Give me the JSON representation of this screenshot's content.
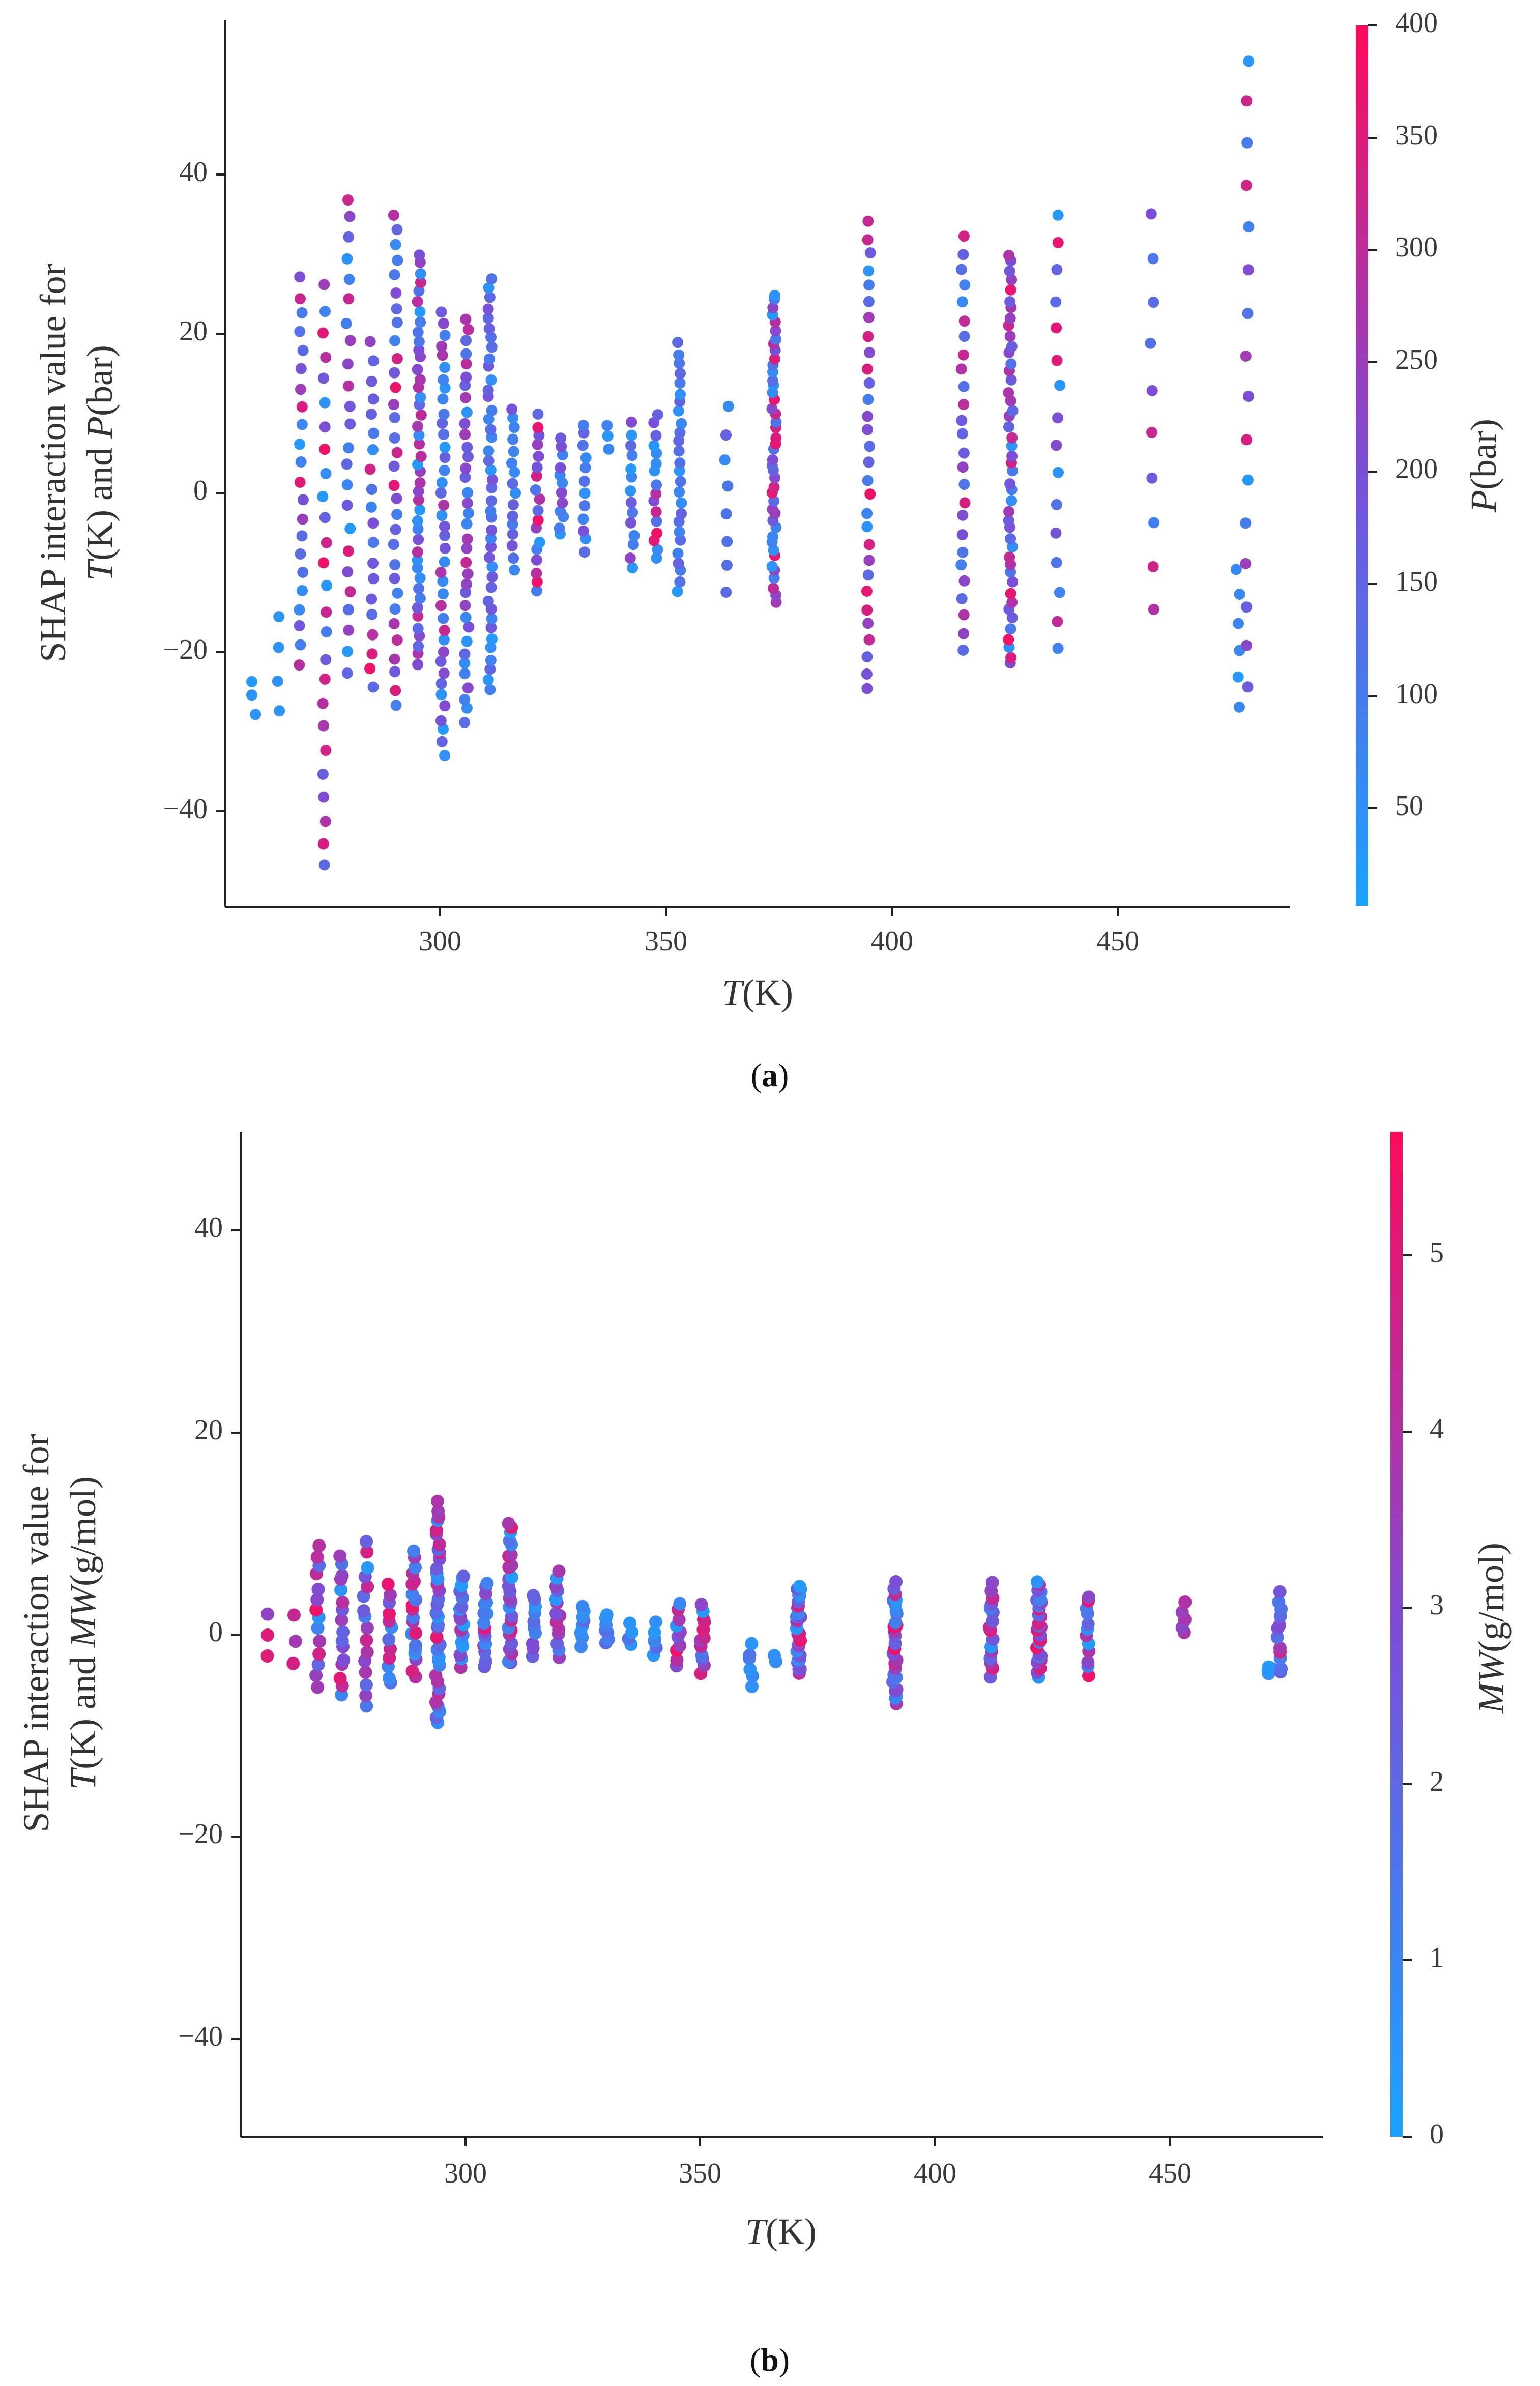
{
  "colors": {
    "low": "#1aa3ff",
    "mid": "#7b4fd6",
    "high": "#ff0a5a",
    "axis": "#222222"
  },
  "chart_data": [
    {
      "type": "scatter",
      "panel_label": "a",
      "ylabel_line1": "SHAP interaction value for",
      "ylabel_line2": {
        "v1": "T",
        "u1": "(K) and ",
        "v2": "P",
        "u2": "(bar)"
      },
      "xlabel": {
        "var": "T",
        "unit": "(K)"
      },
      "xlim": [
        257,
        482
      ],
      "ylim": [
        -52,
        58
      ],
      "xticks": [
        "300",
        "350",
        "400",
        "450"
      ],
      "yticks": [
        "40",
        "20",
        "0",
        "−20",
        "−40"
      ],
      "colorbar": {
        "label": {
          "var": "P",
          "unit": "(bar)"
        },
        "range": [
          8,
          400
        ],
        "ticks": [
          "50",
          "100",
          "150",
          "200",
          "250",
          "300",
          "350",
          "400"
        ]
      },
      "clusters": [
        {
          "x": 263,
          "ymin": -28,
          "ymax": -24,
          "cmin": 0.05,
          "cmax": 0.1,
          "n": 3
        },
        {
          "x": 268,
          "ymin": -28,
          "ymax": -16,
          "cmin": 0.05,
          "cmax": 0.15,
          "n": 4
        },
        {
          "x": 273,
          "ymin": -22,
          "ymax": 26,
          "cmin": 0.05,
          "cmax": 0.95,
          "n": 22
        },
        {
          "x": 278,
          "ymin": -47,
          "ymax": 25,
          "cmin": 0.05,
          "cmax": 0.95,
          "n": 26
        },
        {
          "x": 283,
          "ymin": -23,
          "ymax": 36,
          "cmin": 0.05,
          "cmax": 0.95,
          "n": 24
        },
        {
          "x": 288,
          "ymin": -25,
          "ymax": 18,
          "cmin": 0.1,
          "cmax": 0.95,
          "n": 20
        },
        {
          "x": 293,
          "ymin": -27,
          "ymax": 34,
          "cmin": 0.05,
          "cmax": 0.95,
          "n": 32
        },
        {
          "x": 298,
          "ymin": -22,
          "ymax": 29,
          "cmin": 0.05,
          "cmax": 0.8,
          "n": 44
        },
        {
          "x": 303,
          "ymin": -33,
          "ymax": 22,
          "cmin": 0.05,
          "cmax": 0.8,
          "n": 40
        },
        {
          "x": 308,
          "ymin": -29,
          "ymax": 21,
          "cmin": 0.05,
          "cmax": 0.8,
          "n": 36
        },
        {
          "x": 313,
          "ymin": -25,
          "ymax": 26,
          "cmin": 0.05,
          "cmax": 0.5,
          "n": 42
        },
        {
          "x": 318,
          "ymin": -10,
          "ymax": 10,
          "cmin": 0.05,
          "cmax": 0.5,
          "n": 16
        },
        {
          "x": 323,
          "ymin": -13,
          "ymax": 9,
          "cmin": 0.05,
          "cmax": 0.95,
          "n": 18
        },
        {
          "x": 328,
          "ymin": -6,
          "ymax": 6,
          "cmin": 0.05,
          "cmax": 0.6,
          "n": 12
        },
        {
          "x": 333,
          "ymin": -8,
          "ymax": 8,
          "cmin": 0.05,
          "cmax": 0.5,
          "n": 12
        },
        {
          "x": 338,
          "ymin": 5,
          "ymax": 8,
          "cmin": 0.05,
          "cmax": 0.2,
          "n": 3
        },
        {
          "x": 343,
          "ymin": -10,
          "ymax": 8,
          "cmin": 0.05,
          "cmax": 0.6,
          "n": 14
        },
        {
          "x": 348,
          "ymin": -9,
          "ymax": 9,
          "cmin": 0.05,
          "cmax": 0.95,
          "n": 16
        },
        {
          "x": 353,
          "ymin": -13,
          "ymax": 18,
          "cmin": 0.05,
          "cmax": 0.4,
          "n": 26
        },
        {
          "x": 363,
          "ymin": -13,
          "ymax": 10,
          "cmin": 0.05,
          "cmax": 0.6,
          "n": 8
        },
        {
          "x": 373,
          "ymin": -14,
          "ymax": 24,
          "cmin": 0.05,
          "cmax": 0.95,
          "n": 44
        },
        {
          "x": 393,
          "ymin": -25,
          "ymax": 33,
          "cmin": 0.05,
          "cmax": 0.95,
          "n": 30
        },
        {
          "x": 413,
          "ymin": -20,
          "ymax": 31,
          "cmin": 0.05,
          "cmax": 0.95,
          "n": 26
        },
        {
          "x": 423,
          "ymin": -22,
          "ymax": 29,
          "cmin": 0.05,
          "cmax": 0.95,
          "n": 46
        },
        {
          "x": 433,
          "ymin": -20,
          "ymax": 34,
          "cmin": 0.05,
          "cmax": 0.95,
          "n": 16
        },
        {
          "x": 453,
          "ymin": -15,
          "ymax": 34,
          "cmin": 0.2,
          "cmax": 0.95,
          "n": 10
        },
        {
          "x": 471,
          "ymin": -27,
          "ymax": -10,
          "cmin": 0.05,
          "cmax": 0.2,
          "n": 6
        },
        {
          "x": 473,
          "ymin": -25,
          "ymax": 53,
          "cmin": 0.05,
          "cmax": 0.95,
          "n": 16
        }
      ]
    },
    {
      "type": "scatter",
      "panel_label": "b",
      "ylabel_line1": "SHAP interaction value for",
      "ylabel_line2": {
        "v1": "T",
        "u1": "(K) and ",
        "v2": "MW",
        "u2": "(g/mol)"
      },
      "xlabel": {
        "var": "T",
        "unit": "(K)"
      },
      "xlim": [
        257,
        482
      ],
      "ylim": [
        -50,
        50
      ],
      "xticks": [
        "300",
        "350",
        "400",
        "450"
      ],
      "yticks": [
        "40",
        "20",
        "0",
        "−20",
        "−40"
      ],
      "colorbar": {
        "label": {
          "var": "MW",
          "unit": "(g/mol)"
        },
        "range": [
          0,
          5.7
        ],
        "ticks": [
          "0",
          "1",
          "2",
          "3",
          "4",
          "5"
        ]
      },
      "clusters": [
        {
          "x": 263,
          "ymin": -2,
          "ymax": 2,
          "cmin": 0.5,
          "cmax": 0.95,
          "n": 3
        },
        {
          "x": 268,
          "ymin": -3,
          "ymax": 2,
          "cmin": 0.5,
          "cmax": 0.95,
          "n": 3
        },
        {
          "x": 273,
          "ymin": -5,
          "ymax": 9,
          "cmin": 0.05,
          "cmax": 0.95,
          "n": 14
        },
        {
          "x": 278,
          "ymin": -6,
          "ymax": 8,
          "cmin": 0.05,
          "cmax": 0.95,
          "n": 16
        },
        {
          "x": 283,
          "ymin": -7,
          "ymax": 9,
          "cmin": 0.05,
          "cmax": 0.95,
          "n": 16
        },
        {
          "x": 288,
          "ymin": -5,
          "ymax": 5,
          "cmin": 0.05,
          "cmax": 0.95,
          "n": 12
        },
        {
          "x": 293,
          "ymin": -4,
          "ymax": 8,
          "cmin": 0.05,
          "cmax": 0.95,
          "n": 20
        },
        {
          "x": 298,
          "ymin": -9,
          "ymax": 13,
          "cmin": 0.05,
          "cmax": 0.95,
          "n": 36
        },
        {
          "x": 303,
          "ymin": -3,
          "ymax": 6,
          "cmin": 0.05,
          "cmax": 0.7,
          "n": 18
        },
        {
          "x": 308,
          "ymin": -3,
          "ymax": 5,
          "cmin": 0.05,
          "cmax": 0.9,
          "n": 16
        },
        {
          "x": 313,
          "ymin": -3,
          "ymax": 11,
          "cmin": 0.05,
          "cmax": 0.95,
          "n": 26
        },
        {
          "x": 318,
          "ymin": -2,
          "ymax": 4,
          "cmin": 0.05,
          "cmax": 0.6,
          "n": 10
        },
        {
          "x": 323,
          "ymin": -2,
          "ymax": 6,
          "cmin": 0.05,
          "cmax": 0.95,
          "n": 14
        },
        {
          "x": 328,
          "ymin": -1,
          "ymax": 3,
          "cmin": 0.05,
          "cmax": 0.4,
          "n": 8
        },
        {
          "x": 333,
          "ymin": -1,
          "ymax": 2,
          "cmin": 0.05,
          "cmax": 0.4,
          "n": 7
        },
        {
          "x": 338,
          "ymin": -1,
          "ymax": 1,
          "cmin": 0.05,
          "cmax": 0.3,
          "n": 4
        },
        {
          "x": 343,
          "ymin": -2,
          "ymax": 1,
          "cmin": 0.05,
          "cmax": 0.4,
          "n": 6
        },
        {
          "x": 348,
          "ymin": -3,
          "ymax": 3,
          "cmin": 0.05,
          "cmax": 0.95,
          "n": 10
        },
        {
          "x": 353,
          "ymin": -4,
          "ymax": 3,
          "cmin": 0.05,
          "cmax": 0.95,
          "n": 12
        },
        {
          "x": 363,
          "ymin": -5,
          "ymax": -1,
          "cmin": 0.05,
          "cmax": 0.3,
          "n": 6
        },
        {
          "x": 368,
          "ymin": -3,
          "ymax": -2,
          "cmin": 0.05,
          "cmax": 0.2,
          "n": 2
        },
        {
          "x": 373,
          "ymin": -4,
          "ymax": 5,
          "cmin": 0.05,
          "cmax": 0.95,
          "n": 28
        },
        {
          "x": 393,
          "ymin": -7,
          "ymax": 5,
          "cmin": 0.05,
          "cmax": 0.95,
          "n": 28
        },
        {
          "x": 413,
          "ymin": -4,
          "ymax": 5,
          "cmin": 0.05,
          "cmax": 0.95,
          "n": 16
        },
        {
          "x": 423,
          "ymin": -4,
          "ymax": 5,
          "cmin": 0.05,
          "cmax": 0.95,
          "n": 28
        },
        {
          "x": 433,
          "ymin": -4,
          "ymax": 4,
          "cmin": 0.05,
          "cmax": 0.95,
          "n": 12
        },
        {
          "x": 453,
          "ymin": 0,
          "ymax": 3,
          "cmin": 0.2,
          "cmax": 0.95,
          "n": 6
        },
        {
          "x": 471,
          "ymin": -4,
          "ymax": -3,
          "cmin": 0.05,
          "cmax": 0.15,
          "n": 5
        },
        {
          "x": 473,
          "ymin": -4,
          "ymax": 4,
          "cmin": 0.05,
          "cmax": 0.95,
          "n": 12
        }
      ]
    }
  ]
}
